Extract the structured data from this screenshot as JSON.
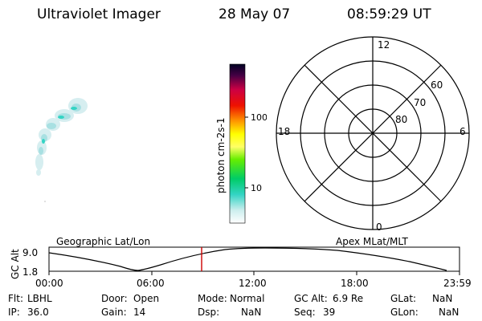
{
  "header": {
    "title": "Ultraviolet Imager",
    "date": "28 May 07",
    "time": "08:59:29 UT"
  },
  "colorbar": {
    "label": "photon cm-2s-1",
    "ticks": [
      "100",
      "10"
    ]
  },
  "polar": {
    "mlt_labels": [
      "12",
      "18",
      "6",
      "0"
    ],
    "lat_labels": [
      "60",
      "70",
      "80"
    ]
  },
  "timeline": {
    "left_label": "Geographic Lat/Lon",
    "right_label": "Apex MLat/MLT",
    "ylabel": "GC Alt",
    "yticks": [
      "9.0",
      "1.8"
    ],
    "xticks": [
      "00:00",
      "06:00",
      "12:00",
      "18:00",
      "23:59"
    ],
    "current_time": "08:59:29",
    "colors": {
      "curve": "#000000",
      "marker": "#cc0000"
    }
  },
  "info": {
    "filter": {
      "label": "Flt:",
      "value": "LBHL"
    },
    "door": {
      "label": "Door:",
      "value": "Open"
    },
    "mode": {
      "label": "Mode:",
      "value": "Normal"
    },
    "gc_alt": {
      "label": "GC Alt:",
      "value": "6.9 Re"
    },
    "glat": {
      "label": "GLat:",
      "value": "NaN"
    },
    "ip": {
      "label": "IP:",
      "value": "36.0"
    },
    "gain": {
      "label": "Gain:",
      "value": "14"
    },
    "dsp": {
      "label": "Dsp:",
      "value": "NaN"
    },
    "seq": {
      "label": "Seq:",
      "value": "39"
    },
    "glon": {
      "label": "GLon:",
      "value": "NaN"
    }
  }
}
